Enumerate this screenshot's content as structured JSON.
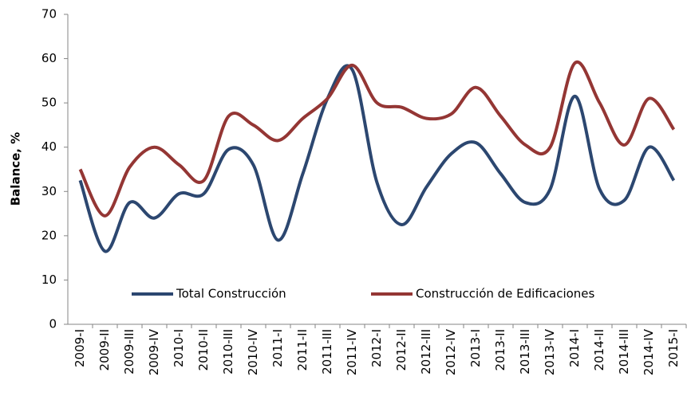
{
  "chart_data": {
    "type": "line",
    "y_label": "Balance, %",
    "categories": [
      "2009-I",
      "2009-II",
      "2009-III",
      "2009-IV",
      "2010-I",
      "2010-II",
      "2010-III",
      "2010-IV",
      "2011-I",
      "2011-II",
      "2011-III",
      "2011-IV",
      "2012-I",
      "2012-II",
      "2012-III",
      "2012-IV",
      "2013-I",
      "2013-II",
      "2013-III",
      "2013-IV",
      "2014-I",
      "2014-II",
      "2014-III",
      "2014-IV",
      "2015-I"
    ],
    "series": [
      {
        "name": "Total Construcción",
        "color": "#2c4770",
        "values": [
          32.5,
          16.5,
          27.5,
          24,
          29.5,
          29.5,
          39.5,
          36,
          19,
          34,
          51,
          57.5,
          32,
          22.5,
          31,
          38.5,
          41,
          34,
          27.5,
          30.5,
          51.5,
          30.5,
          28,
          40,
          32.5
        ]
      },
      {
        "name": "Construcción de Edificaciones",
        "color": "#943634",
        "values": [
          35,
          24.5,
          35.5,
          40,
          36,
          32.5,
          47,
          45,
          41.5,
          46.5,
          51,
          58.5,
          50,
          49,
          46.5,
          47.5,
          53.5,
          47,
          40.5,
          40,
          59,
          50,
          40.5,
          51,
          44
        ]
      }
    ],
    "ylim": [
      0,
      70
    ],
    "yticks": [
      0,
      10,
      20,
      30,
      40,
      50,
      60,
      70
    ],
    "smooth": true,
    "grid": false,
    "legend": "bottom"
  }
}
